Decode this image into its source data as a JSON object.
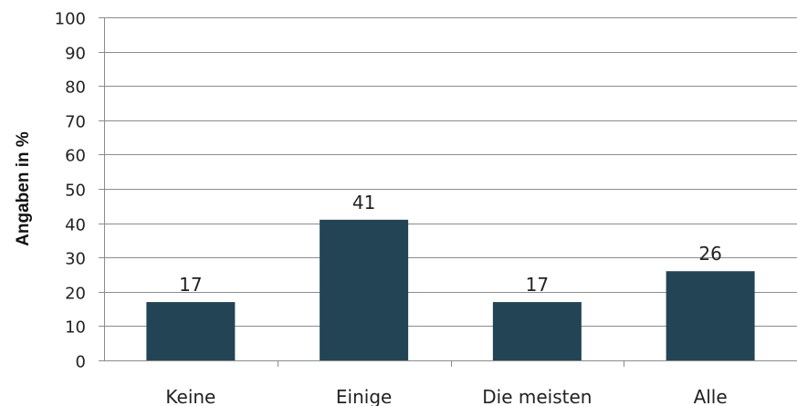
{
  "chart_data": {
    "type": "bar",
    "categories": [
      "Keine",
      "Einige",
      "Die meisten",
      "Alle"
    ],
    "values": [
      17,
      41,
      17,
      26
    ],
    "data_labels": [
      "17",
      "41",
      "17",
      "26"
    ],
    "title": "",
    "xlabel": "",
    "ylabel": "Angaben in %",
    "ylim": [
      0,
      100
    ],
    "yticks": [
      0,
      10,
      20,
      30,
      40,
      50,
      60,
      70,
      80,
      90,
      100
    ],
    "ytick_labels": [
      "0",
      "10",
      "20",
      "30",
      "40",
      "50",
      "60",
      "70",
      "80",
      "90",
      "100"
    ],
    "grid": true,
    "legend": false,
    "colors": {
      "bar": "#234455",
      "grid": "#8c8c8c",
      "axis": "#8c8c8c"
    }
  }
}
